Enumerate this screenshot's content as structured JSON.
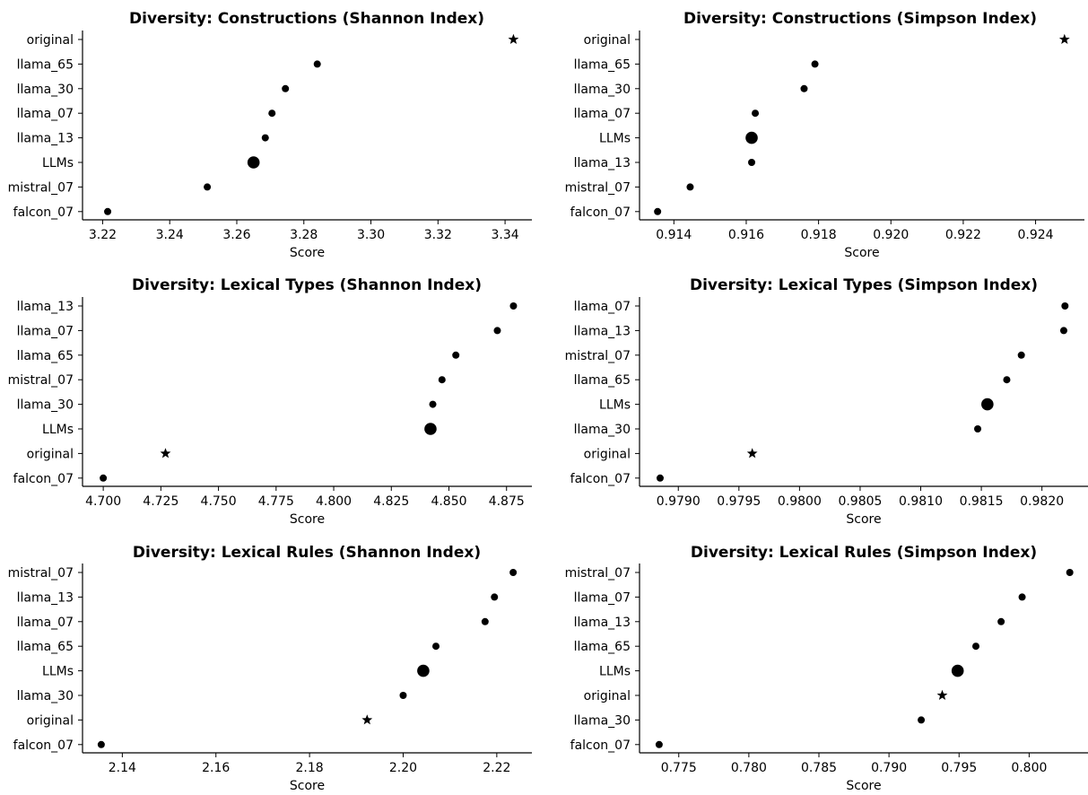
{
  "chart_data": [
    {
      "type": "scatter",
      "title": "Diversity: Constructions (Shannon Index)",
      "xlabel": "Score",
      "ylabel": "",
      "xlim": [
        3.214,
        3.348
      ],
      "xticks": [
        "3.22",
        "3.24",
        "3.26",
        "3.28",
        "3.30",
        "3.32",
        "3.34"
      ],
      "categories": [
        "original",
        "llama_65",
        "llama_30",
        "llama_07",
        "llama_13",
        "LLMs",
        "mistral_07",
        "falcon_07"
      ],
      "values": [
        3.3425,
        3.284,
        3.2745,
        3.2705,
        3.2685,
        3.265,
        3.2512,
        3.2215
      ],
      "markers": [
        "star",
        "dot",
        "dot",
        "dot",
        "dot",
        "big-dot",
        "dot",
        "dot"
      ],
      "grid": false
    },
    {
      "type": "scatter",
      "title": "Diversity: Constructions (Simpson Index)",
      "xlabel": "Score",
      "ylabel": "",
      "xlim": [
        0.91305,
        0.92535
      ],
      "xticks": [
        "0.914",
        "0.916",
        "0.918",
        "0.920",
        "0.922",
        "0.924"
      ],
      "categories": [
        "original",
        "llama_65",
        "llama_30",
        "llama_07",
        "LLMs",
        "llama_13",
        "mistral_07",
        "falcon_07"
      ],
      "values": [
        0.9248,
        0.9179,
        0.9176,
        0.91625,
        0.91615,
        0.91615,
        0.91445,
        0.91355
      ],
      "markers": [
        "star",
        "dot",
        "dot",
        "dot",
        "big-dot",
        "dot",
        "dot",
        "dot"
      ],
      "grid": false
    },
    {
      "type": "scatter",
      "title": "Diversity: Lexical Types (Shannon Index)",
      "xlabel": "Score",
      "ylabel": "",
      "xlim": [
        4.691,
        4.886
      ],
      "xticks": [
        "4.700",
        "4.725",
        "4.750",
        "4.775",
        "4.800",
        "4.825",
        "4.850",
        "4.875"
      ],
      "categories": [
        "llama_13",
        "llama_07",
        "llama_65",
        "mistral_07",
        "llama_30",
        "LLMs",
        "original",
        "falcon_07"
      ],
      "values": [
        4.878,
        4.871,
        4.853,
        4.847,
        4.843,
        4.842,
        4.727,
        4.7
      ],
      "markers": [
        "dot",
        "dot",
        "dot",
        "dot",
        "dot",
        "big-dot",
        "star",
        "dot"
      ],
      "grid": false
    },
    {
      "type": "scatter",
      "title": "Diversity: Lexical Types (Simpson Index)",
      "xlabel": "Score",
      "ylabel": "",
      "xlim": [
        0.97868,
        0.98238
      ],
      "xticks": [
        "0.9790",
        "0.9795",
        "0.9800",
        "0.9805",
        "0.9810",
        "0.9815",
        "0.9820"
      ],
      "categories": [
        "llama_07",
        "llama_13",
        "mistral_07",
        "llama_65",
        "LLMs",
        "llama_30",
        "original",
        "falcon_07"
      ],
      "values": [
        0.98219,
        0.98218,
        0.98183,
        0.98171,
        0.98155,
        0.98147,
        0.97961,
        0.97885
      ],
      "markers": [
        "dot",
        "dot",
        "dot",
        "dot",
        "big-dot",
        "dot",
        "star",
        "dot"
      ],
      "grid": false
    },
    {
      "type": "scatter",
      "title": "Diversity: Lexical Rules (Shannon Index)",
      "xlabel": "Score",
      "ylabel": "",
      "xlim": [
        2.1315,
        2.2275
      ],
      "xticks": [
        "2.14",
        "2.16",
        "2.18",
        "2.20",
        "2.22"
      ],
      "categories": [
        "mistral_07",
        "llama_13",
        "llama_07",
        "llama_65",
        "LLMs",
        "llama_30",
        "original",
        "falcon_07"
      ],
      "values": [
        2.2235,
        2.2195,
        2.2175,
        2.207,
        2.2043,
        2.2,
        2.1923,
        2.1355
      ],
      "markers": [
        "dot",
        "dot",
        "dot",
        "dot",
        "big-dot",
        "dot",
        "star",
        "dot"
      ],
      "grid": false
    },
    {
      "type": "scatter",
      "title": "Diversity: Lexical Rules (Simpson Index)",
      "xlabel": "Score",
      "ylabel": "",
      "xlim": [
        0.7722,
        0.8042
      ],
      "xticks": [
        "0.775",
        "0.780",
        "0.785",
        "0.790",
        "0.795",
        "0.800"
      ],
      "categories": [
        "mistral_07",
        "llama_07",
        "llama_13",
        "llama_65",
        "LLMs",
        "original",
        "llama_30",
        "falcon_07"
      ],
      "values": [
        0.8029,
        0.7995,
        0.798,
        0.7962,
        0.7949,
        0.7938,
        0.7923,
        0.7736
      ],
      "markers": [
        "dot",
        "dot",
        "dot",
        "dot",
        "big-dot",
        "star",
        "dot",
        "dot"
      ],
      "grid": false
    }
  ]
}
